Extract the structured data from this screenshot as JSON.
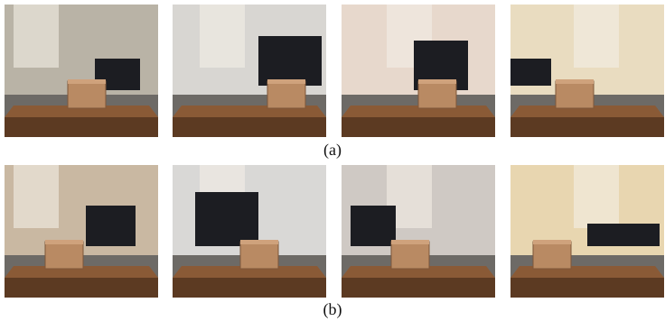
{
  "figure": {
    "rows": [
      {
        "caption": "(a)"
      },
      {
        "caption": "(b)"
      }
    ]
  }
}
